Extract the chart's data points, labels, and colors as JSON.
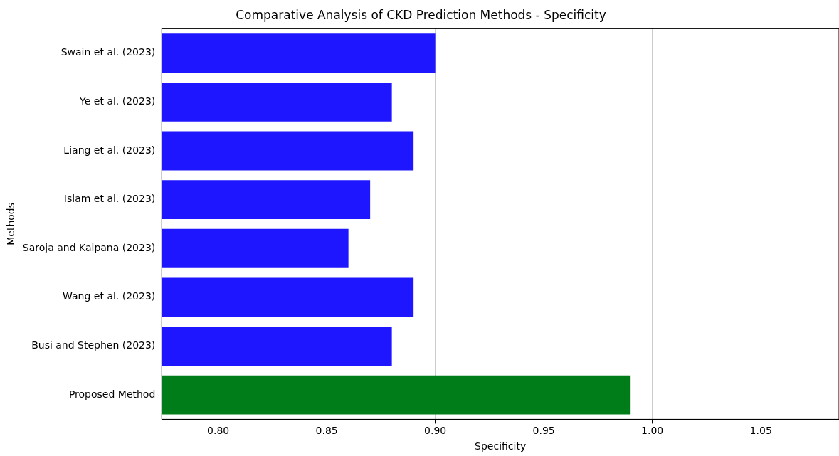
{
  "chart_data": {
    "type": "bar",
    "orientation": "horizontal",
    "title": "Comparative Analysis of CKD Prediction Methods - Specificity",
    "xlabel": "Specificity",
    "ylabel": "Methods",
    "categories": [
      "Swain et al. (2023)",
      "Ye et al. (2023)",
      "Liang et al. (2023)",
      "Islam et al. (2023)",
      "Saroja and Kalpana (2023)",
      "Wang et al. (2023)",
      "Busi and Stephen (2023)",
      "Proposed Method"
    ],
    "values": [
      0.9,
      0.88,
      0.89,
      0.87,
      0.86,
      0.89,
      0.88,
      0.99
    ],
    "colors": [
      "#1e16ff",
      "#1e16ff",
      "#1e16ff",
      "#1e16ff",
      "#1e16ff",
      "#1e16ff",
      "#1e16ff",
      "#007d18"
    ],
    "xlim": [
      0.774,
      1.086
    ],
    "xticks": [
      {
        "value": 0.8,
        "label": "0.80"
      },
      {
        "value": 0.85,
        "label": "0.85"
      },
      {
        "value": 0.9,
        "label": "0.90"
      },
      {
        "value": 0.95,
        "label": "0.95"
      },
      {
        "value": 1.0,
        "label": "1.00"
      },
      {
        "value": 1.05,
        "label": "1.05"
      }
    ],
    "grid": "x",
    "legend": false
  }
}
